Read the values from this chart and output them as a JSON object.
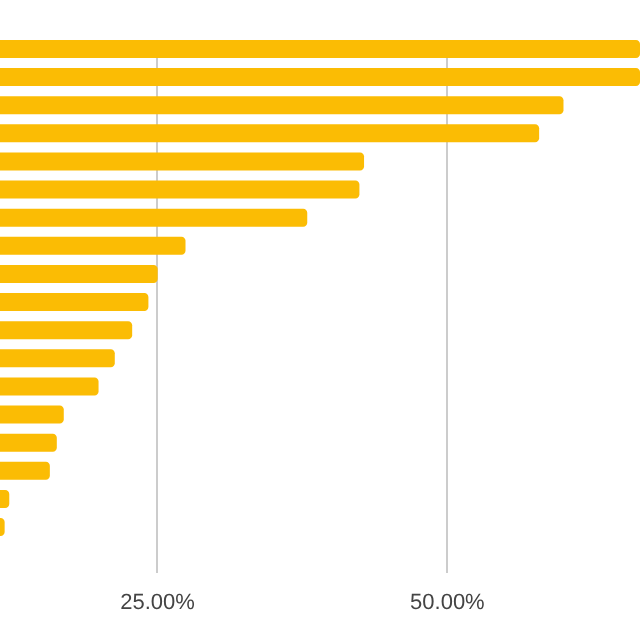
{
  "chart_data": {
    "type": "bar",
    "orientation": "horizontal",
    "categories": [
      null,
      null,
      null,
      null,
      null,
      null,
      null,
      null,
      null,
      null,
      null,
      null,
      null,
      null,
      null,
      null,
      null,
      null
    ],
    "values": [
      66.7,
      66.7,
      60.1,
      58.0,
      42.9,
      42.5,
      38.0,
      27.5,
      25.1,
      24.3,
      22.9,
      21.4,
      20.0,
      17.0,
      16.4,
      15.8,
      12.3,
      11.9
    ],
    "color": "#fbbc04",
    "xlim": [
      11.5,
      66.7
    ],
    "xticks": [
      {
        "value": 25,
        "label": "25.00%"
      },
      {
        "value": 50,
        "label": "50.00%"
      }
    ],
    "grid": "x"
  }
}
